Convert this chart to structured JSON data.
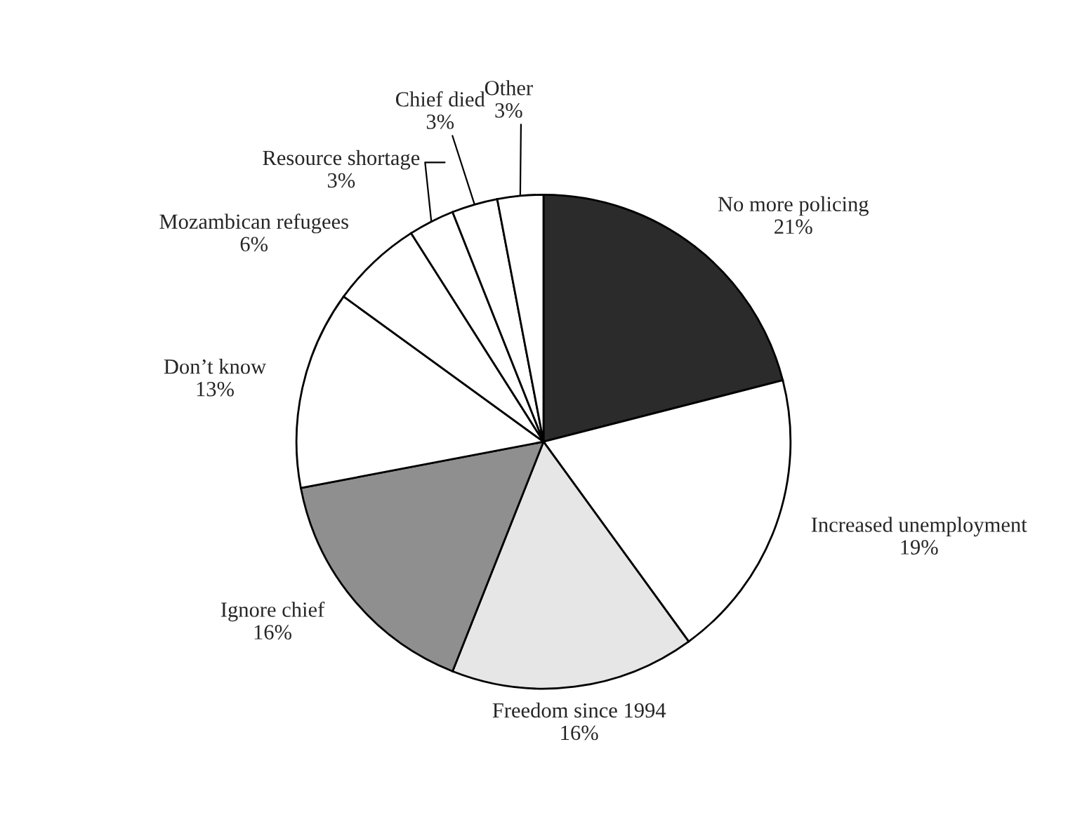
{
  "chart_data": {
    "type": "pie",
    "categories": [
      "No more policing",
      "Increased unemployment",
      "Freedom since 1994",
      "Ignore chief",
      "Don’t know",
      "Mozambican refugees",
      "Resource shortage",
      "Chief died",
      "Other"
    ],
    "values": [
      21,
      19,
      16,
      16,
      13,
      6,
      3,
      3,
      3
    ],
    "colors": [
      "#2b2b2b",
      "#ffffff",
      "#e6e6e6",
      "#8f8f8f",
      "#ffffff",
      "#ffffff",
      "#ffffff",
      "#ffffff",
      "#ffffff"
    ],
    "value_labels": [
      "21%",
      "19%",
      "16%",
      "16%",
      "13%",
      "6%",
      "3%",
      "3%",
      "3%"
    ]
  }
}
